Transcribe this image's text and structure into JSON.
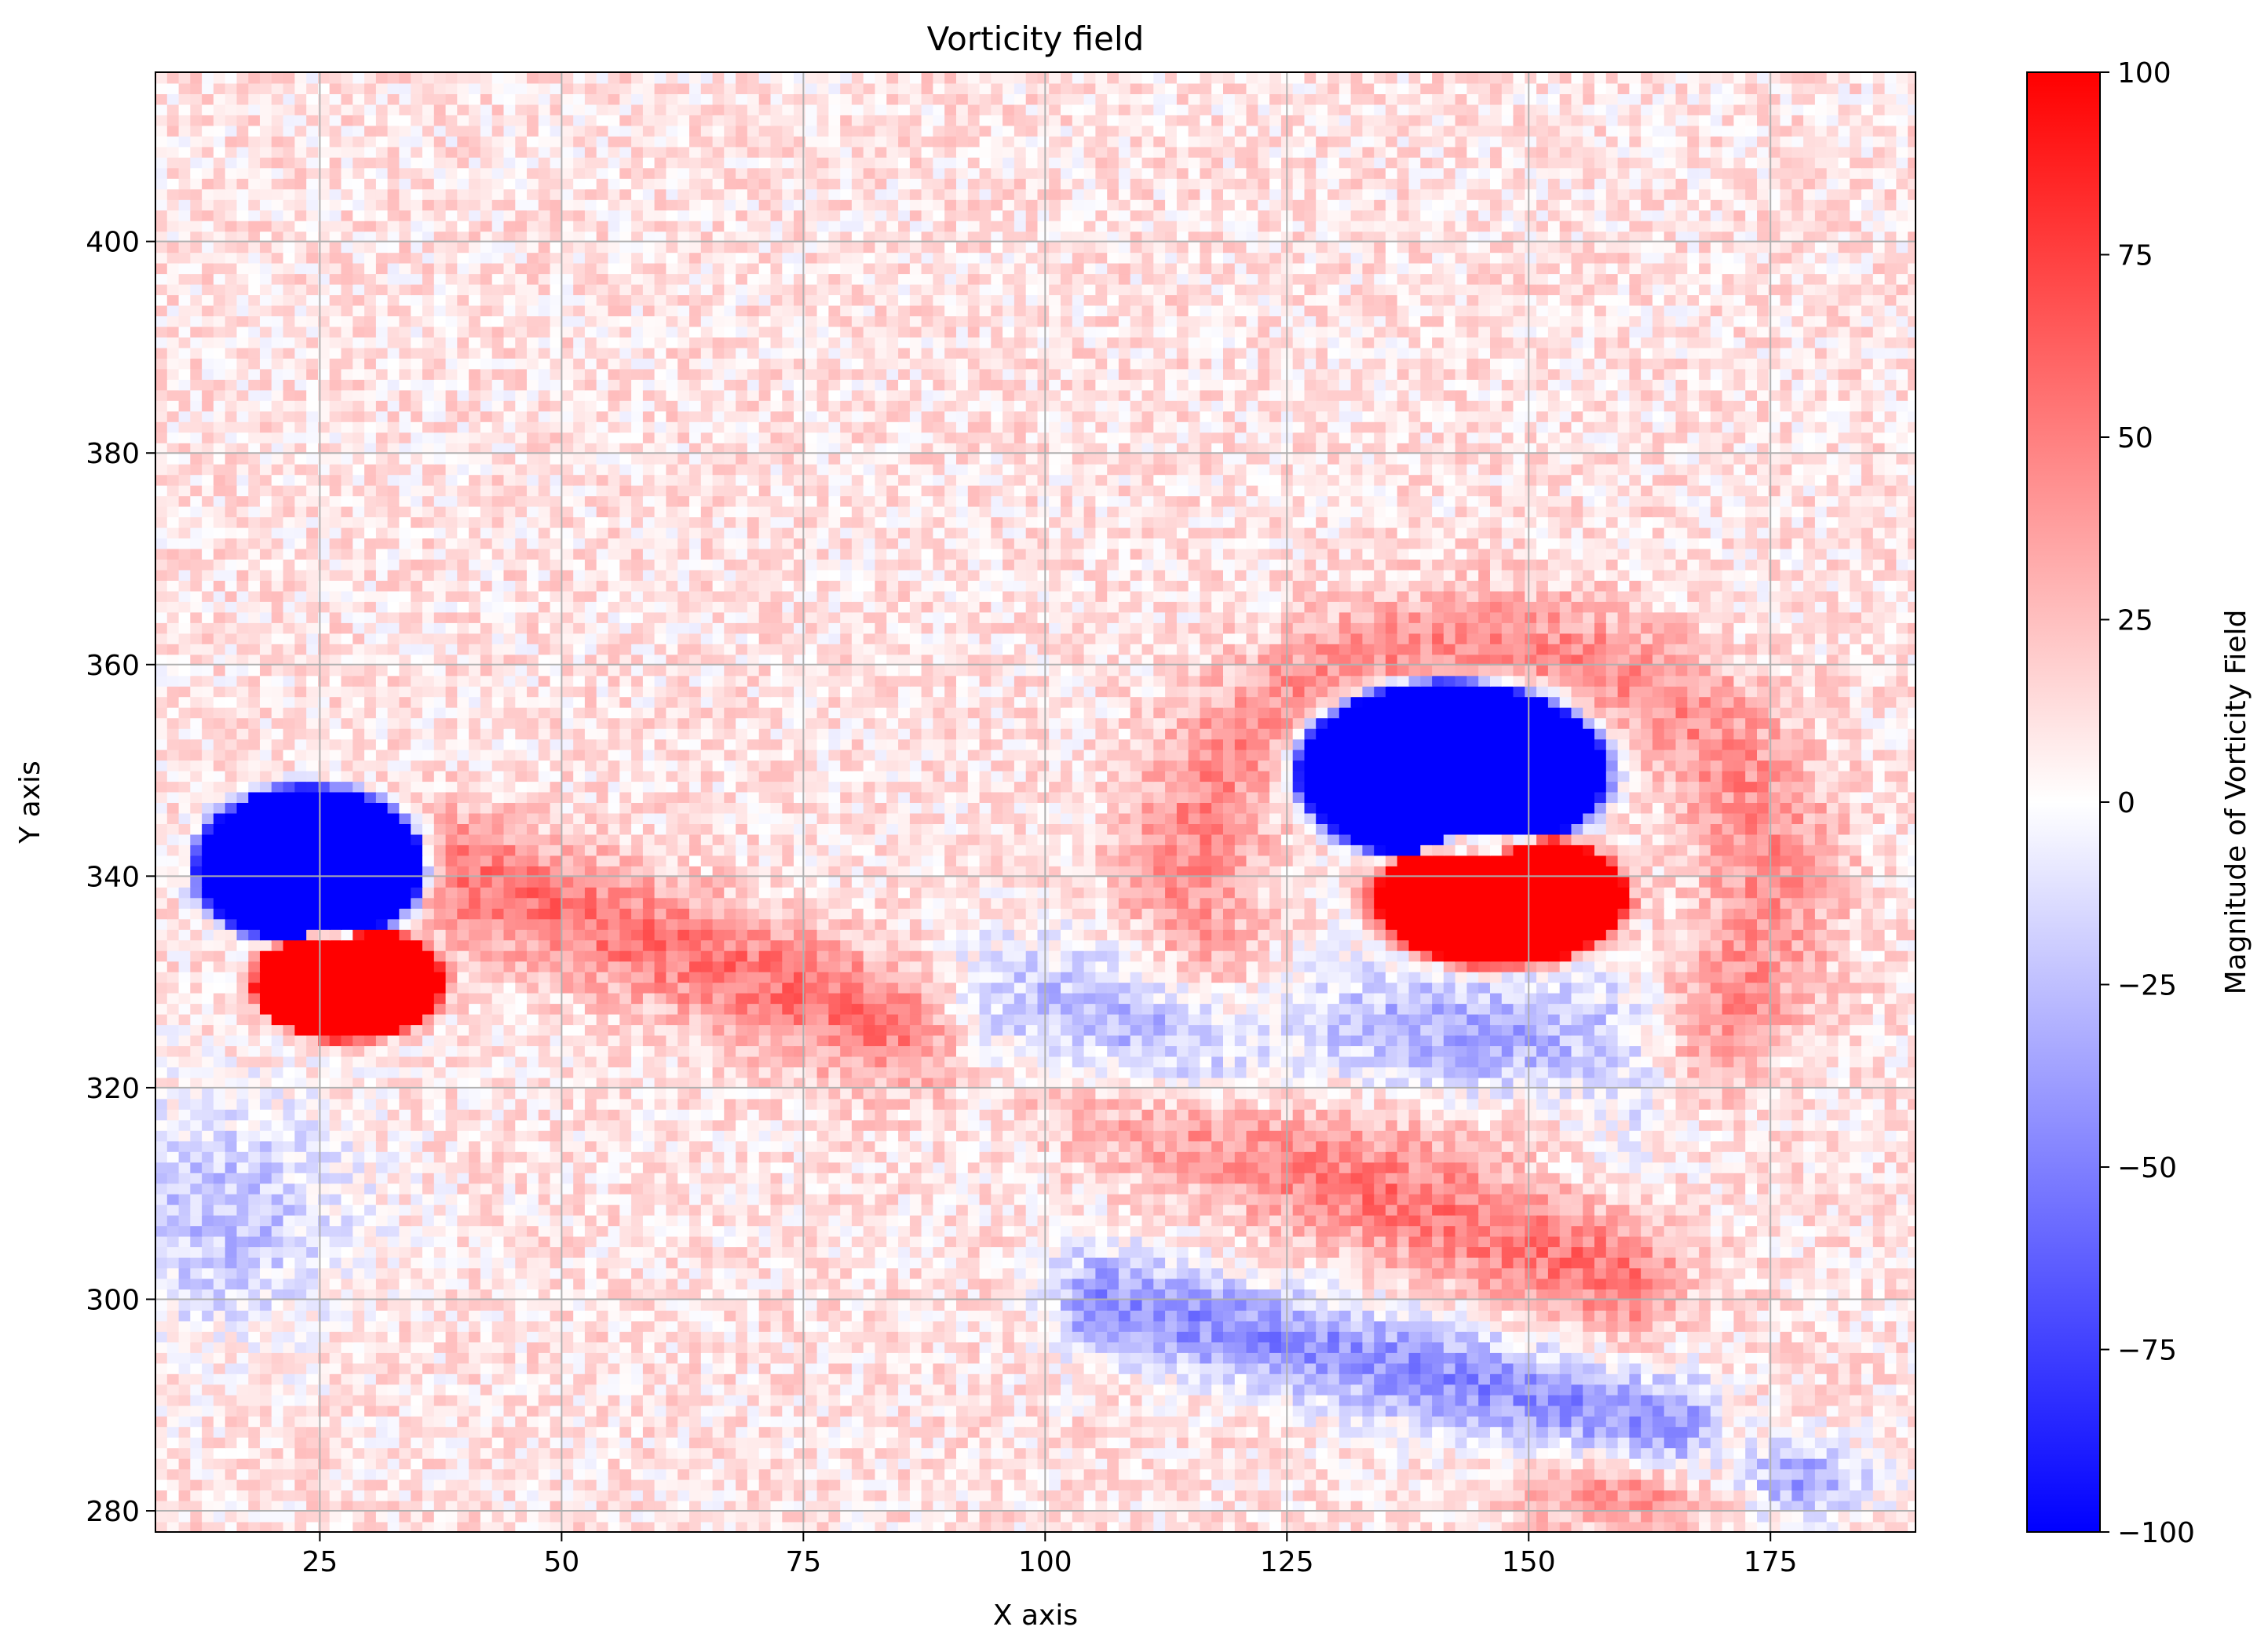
{
  "chart_data": {
    "type": "heatmap",
    "title": "Vorticity field",
    "xlabel": "X axis",
    "ylabel": "Y axis",
    "xlim": [
      8,
      190
    ],
    "ylim": [
      278,
      416
    ],
    "x_ticks": [
      25,
      50,
      75,
      100,
      125,
      150,
      175
    ],
    "y_ticks": [
      280,
      300,
      320,
      340,
      360,
      380,
      400
    ],
    "grid": true,
    "colormap": "bwr",
    "colormap_colors": {
      "low": "#0000ff",
      "mid": "#ffffff",
      "high": "#ff0000"
    },
    "colorbar": {
      "label": "Magnitude of Vorticity Field",
      "range": [
        -100,
        100
      ],
      "ticks": [
        -100,
        -75,
        -50,
        -25,
        0,
        25,
        50,
        75,
        100
      ],
      "tick_labels": [
        "−100",
        "−75",
        "−50",
        "−25",
        "0",
        "25",
        "50",
        "75",
        "100"
      ]
    },
    "field_features": [
      {
        "kind": "vortex_core",
        "center": [
          24,
          341
        ],
        "radius": [
          11,
          7
        ],
        "value": -100
      },
      {
        "kind": "vortex_core",
        "center": [
          28,
          330
        ],
        "radius": [
          9,
          5
        ],
        "value": 100
      },
      {
        "kind": "vortex_core",
        "center": [
          142,
          350
        ],
        "radius": [
          15,
          8
        ],
        "value": -100
      },
      {
        "kind": "vortex_core",
        "center": [
          147,
          338
        ],
        "radius": [
          12,
          6
        ],
        "value": 100
      },
      {
        "kind": "band",
        "from": [
          40,
          340
        ],
        "to": [
          160,
          302
        ],
        "width": 6,
        "value": 45
      },
      {
        "kind": "band",
        "from": [
          105,
          300
        ],
        "to": [
          165,
          288
        ],
        "width": 5,
        "value": -55
      },
      {
        "kind": "band",
        "from": [
          95,
          325
        ],
        "to": [
          160,
          322
        ],
        "width": 8,
        "value": -55
      },
      {
        "kind": "ring",
        "center": [
          145,
          340
        ],
        "radius": [
          30,
          22
        ],
        "value": 35
      },
      {
        "kind": "region",
        "center": [
          15,
          308
        ],
        "radius": [
          15,
          12
        ],
        "value": -35
      },
      {
        "kind": "region",
        "center": [
          160,
          282
        ],
        "radius": [
          12,
          4
        ],
        "value": 40
      },
      {
        "kind": "region",
        "center": [
          178,
          283
        ],
        "radius": [
          8,
          4
        ],
        "value": -50
      },
      {
        "kind": "background",
        "value": 10
      }
    ]
  }
}
